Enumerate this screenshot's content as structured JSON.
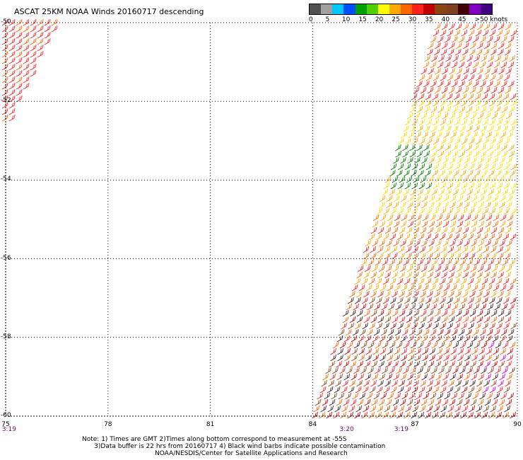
{
  "title": "ASCAT 25KM NOAA Winds 20160717 descending",
  "legend": {
    "colors": [
      "#505050",
      "#a0a0a0",
      "#00c8ff",
      "#0050ff",
      "#00a000",
      "#50d000",
      "#ffff00",
      "#ffaa00",
      "#ff6600",
      "#ff2020",
      "#c00000",
      "#8b4513",
      "#804020",
      "#400000",
      "#8000c0",
      "#400080"
    ],
    "labels": [
      {
        "text": "0",
        "pos": 0
      },
      {
        "text": "5",
        "pos": 1
      },
      {
        "text": "10",
        "pos": 2
      },
      {
        "text": "15",
        "pos": 3
      },
      {
        "text": "20",
        "pos": 4
      },
      {
        "text": "25",
        "pos": 5
      },
      {
        "text": "30",
        "pos": 6
      },
      {
        "text": "35",
        "pos": 7
      },
      {
        "text": "40",
        "pos": 8
      },
      {
        "text": "45",
        "pos": 9
      },
      {
        "text": ">50 knots",
        "pos": 10
      }
    ]
  },
  "map": {
    "lat_labels": [
      "-50",
      "-52",
      "-54",
      "-56",
      "-58",
      "-60"
    ],
    "lon_labels": [
      "75",
      "78",
      "81",
      "84",
      "87",
      "90"
    ],
    "lon_values": [
      75,
      78,
      81,
      84,
      87,
      90
    ],
    "lat_values": [
      -50,
      -52,
      -54,
      -56,
      -58,
      -60
    ],
    "time_labels": [
      {
        "text": "3:19",
        "lon": 75.1
      },
      {
        "text": "3:20",
        "lon": 85
      },
      {
        "text": "3:19",
        "lon": 86.6
      }
    ]
  },
  "notes": {
    "line1": "Note: 1) Times are GMT 2)Times along bottom correspond to measurement at -55S",
    "line2": "      3)Data buffer is 22 hrs from 20160717 4) Black wind barbs indicate possible contamination",
    "line3": "                                    NOAA/NESDIS/Center for Satellite Applications and Research"
  }
}
